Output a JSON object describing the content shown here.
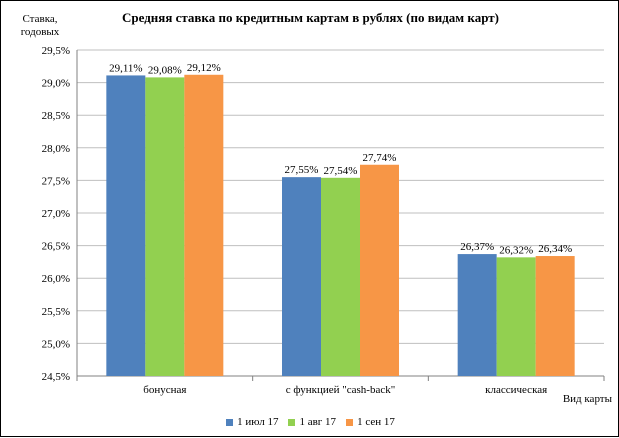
{
  "chart_data": {
    "type": "bar",
    "title": "Средняя ставка по кредитным картам в рублях (по видам карт)",
    "ylabel": "Ставка, годовых",
    "xlabel": "Вид карты",
    "categories": [
      "бонусная",
      "с функцией \"cash-back\"",
      "классическая"
    ],
    "series": [
      {
        "name": "1 июл 17",
        "color": "#4f81bd",
        "values": [
          29.11,
          27.55,
          26.37
        ],
        "labels": [
          "29,11%",
          "27,55%",
          "26,37%"
        ]
      },
      {
        "name": "1 авг 17",
        "color": "#92d050",
        "values": [
          29.08,
          27.54,
          26.32
        ],
        "labels": [
          "29,08%",
          "27,54%",
          "26,32%"
        ]
      },
      {
        "name": "1 сен 17",
        "color": "#f79646",
        "values": [
          29.12,
          27.74,
          26.34
        ],
        "labels": [
          "29,12%",
          "27,74%",
          "26,34%"
        ]
      }
    ],
    "ylim": [
      24.5,
      29.5
    ],
    "yticks": [
      24.5,
      25.0,
      25.5,
      26.0,
      26.5,
      27.0,
      27.5,
      28.0,
      28.5,
      29.0,
      29.5
    ],
    "ytick_labels": [
      "24,5%",
      "25,0%",
      "25,5%",
      "26,0%",
      "26,5%",
      "27,0%",
      "27,5%",
      "28,0%",
      "28,5%",
      "29,0%",
      "29,5%"
    ],
    "grid": true,
    "legend_position": "bottom"
  }
}
